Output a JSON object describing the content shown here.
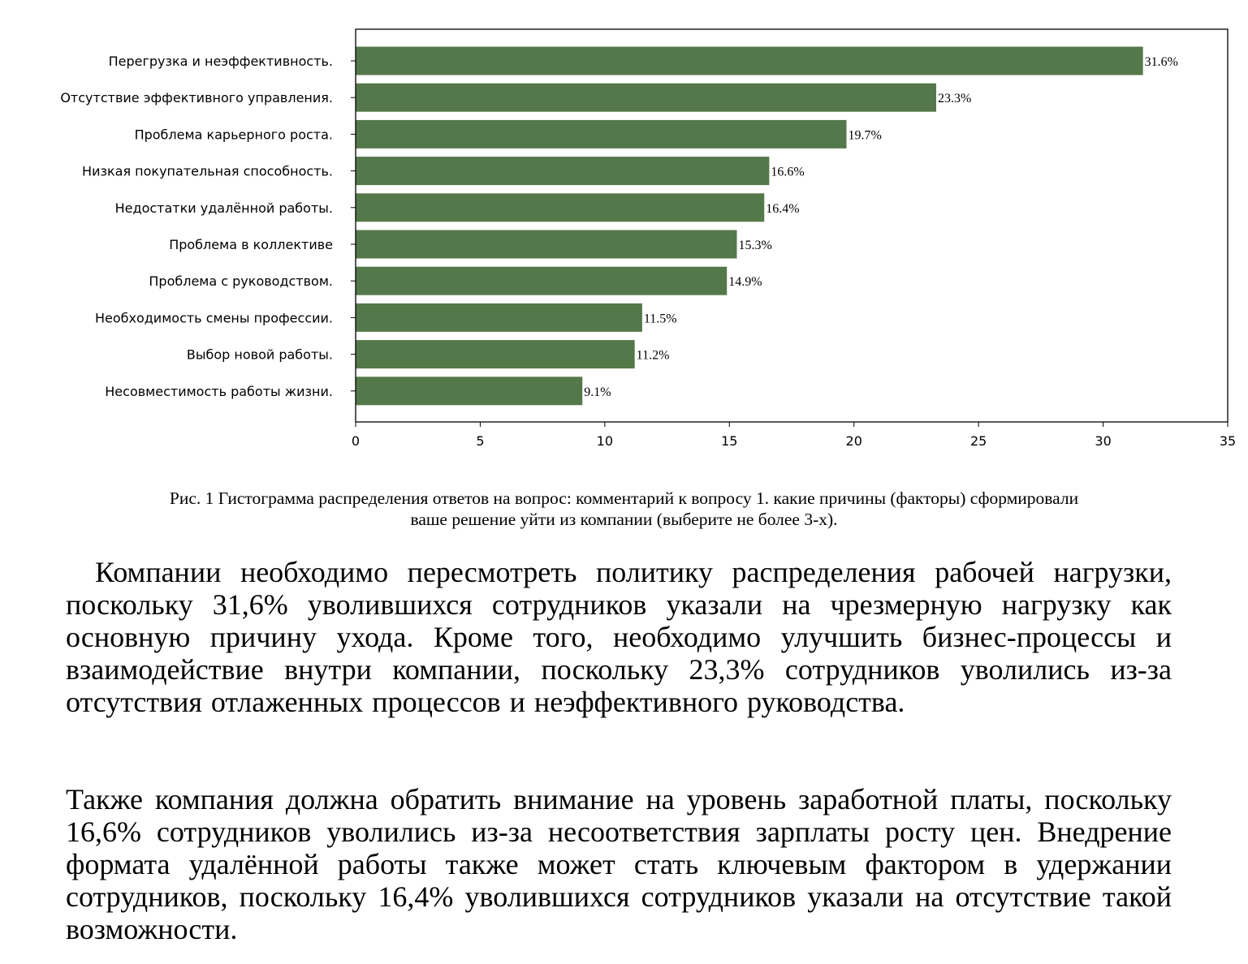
{
  "chart_data": {
    "type": "bar",
    "orientation": "horizontal",
    "categories": [
      "Перегрузка   и неэффективность.",
      "Отсутствие  эффективного управления.",
      "Проблема  карьерного роста.",
      "Низкая  покупательная способность.",
      "Недостатки  удалённой работы.",
      "Проблема  в коллективе",
      "Проблема   с руководством.",
      "Необходимость    смены профессии.",
      "Выбор  новой работы.",
      "Несовместимость   работы жизни."
    ],
    "values": [
      31.6,
      23.3,
      19.7,
      16.6,
      16.4,
      15.3,
      14.9,
      11.5,
      11.2,
      9.1
    ],
    "value_labels": [
      "31.6%",
      "23.3%",
      "19.7%",
      "16.6%",
      "16.4%",
      "15.3%",
      "14.9%",
      "11.5%",
      "11.2%",
      "9.1%"
    ],
    "xlim": [
      0,
      35
    ],
    "xticks": [
      0,
      5,
      10,
      15,
      20,
      25,
      30,
      35
    ],
    "bar_color": "#55784a",
    "grid": false,
    "title": "",
    "xlabel": "",
    "ylabel": ""
  },
  "caption": {
    "line1": "Рис. 1 Гистограмма распределения ответов на вопрос: комментарий к вопросу  1. какие причины (факторы) сформировали",
    "line2": "ваше решение уйти из компании (выберите не более 3-х)."
  },
  "paragraphs": {
    "p1": "Компании необходимо пересмотреть политику распределения рабочей нагрузки, поскольку 31,6% уволившихся сотрудников указали на чрезмерную нагрузку как основную причину ухода. Кроме того, необходимо улучшить бизнес-процессы и взаимодействие внутри компании, поскольку 23,3% сотрудников уволились из-за отсутствия отлаженных процессов и неэффективного руководства.",
    "p2": "Также компания должна обратить внимание на уровень заработной платы, поскольку 16,6% сотрудников уволились из-за несоответствия зарплаты росту цен. Внедрение формата удалённой работы также может стать ключевым фактором в удержании сотрудников, поскольку 16,4% уволившихся сотрудников указали на отсутствие такой возможности."
  }
}
